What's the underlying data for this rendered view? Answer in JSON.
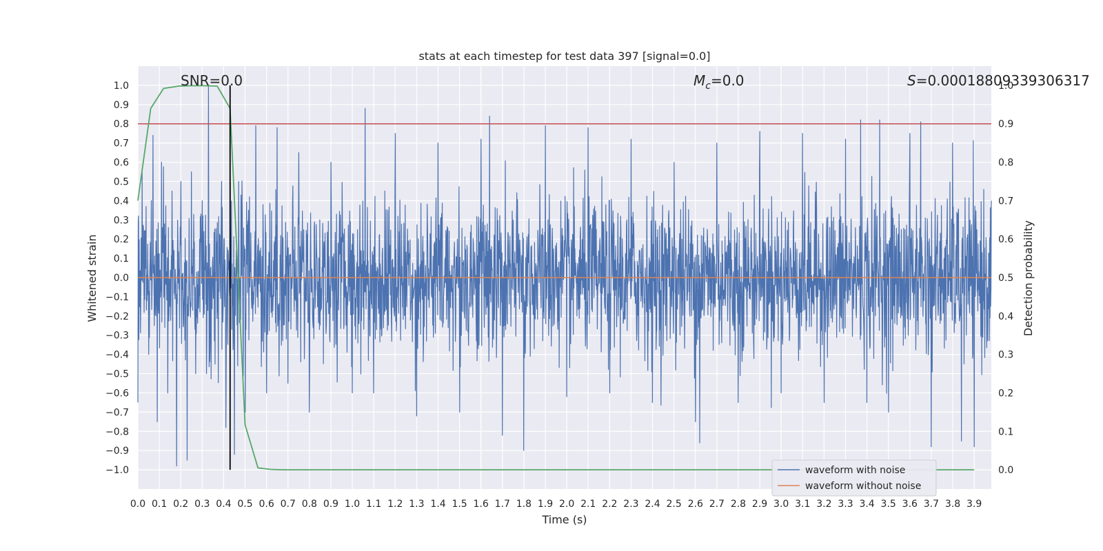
{
  "chart_data": {
    "type": "line",
    "title": "stats at each timestep for test data 397 [signal=0.0]",
    "xlabel": "Time (s)",
    "ylabel": "Whitened strain",
    "ylabel_right": "Detection probability",
    "xlim": [
      0.0,
      3.98
    ],
    "ylim": [
      -1.1,
      1.1
    ],
    "ylim_right": [
      -0.05,
      1.05
    ],
    "x_ticks": [
      "0.0",
      "0.1",
      "0.2",
      "0.3",
      "0.4",
      "0.5",
      "0.6",
      "0.7",
      "0.8",
      "0.9",
      "1.0",
      "1.1",
      "1.2",
      "1.3",
      "1.4",
      "1.5",
      "1.6",
      "1.7",
      "1.8",
      "1.9",
      "2.0",
      "2.1",
      "2.2",
      "2.3",
      "2.4",
      "2.5",
      "2.6",
      "2.7",
      "2.8",
      "2.9",
      "3.0",
      "3.1",
      "3.2",
      "3.3",
      "3.4",
      "3.5",
      "3.6",
      "3.7",
      "3.8",
      "3.9"
    ],
    "y_ticks": [
      "1.0",
      "0.9",
      "0.8",
      "0.7",
      "0.6",
      "0.5",
      "0.4",
      "0.3",
      "0.2",
      "0.1",
      "0.0",
      "-0.1",
      "-0.2",
      "-0.3",
      "-0.4",
      "-0.5",
      "-0.6",
      "-0.7",
      "-0.8",
      "-0.9",
      "-1.0"
    ],
    "y_right_ticks": [
      "1.0",
      "0.9",
      "0.8",
      "0.7",
      "0.6",
      "0.5",
      "0.4",
      "0.3",
      "0.2",
      "0.1",
      "0.0"
    ],
    "grid": true,
    "legend_position": "lower-right",
    "series": [
      {
        "name": "waveform with noise",
        "color": "#4c72b0",
        "description": "dense noise trace",
        "x_range": [
          0.0,
          3.98
        ],
        "y_range": [
          -0.98,
          1.0
        ],
        "x": [
          0.0,
          0.02,
          0.05,
          0.07,
          0.09,
          0.11,
          0.14,
          0.16,
          0.18,
          0.2,
          0.23,
          0.25,
          0.27,
          0.3,
          0.32,
          0.33,
          0.36,
          0.39,
          0.41,
          0.43,
          0.45,
          0.47,
          0.5,
          0.55,
          0.6,
          0.65,
          0.7,
          0.75,
          0.8,
          0.9,
          1.0,
          1.06,
          1.1,
          1.2,
          1.3,
          1.4,
          1.5,
          1.6,
          1.64,
          1.7,
          1.8,
          1.9,
          2.0,
          2.1,
          2.2,
          2.3,
          2.4,
          2.5,
          2.6,
          2.62,
          2.7,
          2.8,
          2.9,
          3.0,
          3.1,
          3.2,
          3.3,
          3.37,
          3.4,
          3.46,
          3.5,
          3.6,
          3.65,
          3.7,
          3.8,
          3.84,
          3.9,
          3.98
        ],
        "y": [
          -0.65,
          0.55,
          -0.4,
          0.74,
          -0.75,
          0.6,
          -0.6,
          0.45,
          -0.98,
          0.5,
          -0.95,
          0.55,
          -0.5,
          0.4,
          -0.5,
          1.0,
          -0.45,
          0.5,
          -0.78,
          0.62,
          -0.92,
          0.5,
          -0.7,
          0.79,
          -0.6,
          0.78,
          -0.55,
          0.65,
          -0.7,
          0.6,
          -0.6,
          0.88,
          -0.6,
          0.75,
          -0.72,
          0.7,
          -0.7,
          0.72,
          0.84,
          -0.82,
          -0.9,
          0.79,
          -0.62,
          0.78,
          -0.6,
          0.72,
          -0.65,
          0.6,
          -0.75,
          -0.86,
          0.7,
          -0.65,
          0.76,
          -0.6,
          0.75,
          -0.65,
          0.72,
          0.82,
          -0.65,
          0.82,
          -0.7,
          0.75,
          0.81,
          -0.88,
          0.7,
          -0.85,
          -0.88,
          0.4
        ]
      },
      {
        "name": "waveform without noise",
        "color": "#dd8452",
        "x": [
          0.0,
          3.98
        ],
        "y": [
          0.0,
          0.0
        ]
      },
      {
        "name": "",
        "color": "#55a868",
        "axis": "right",
        "x": [
          0.0,
          0.03,
          0.06,
          0.12,
          0.19,
          0.25,
          0.31,
          0.37,
          0.43,
          0.5,
          0.56,
          0.62,
          0.68,
          1.0,
          2.0,
          3.0,
          3.9
        ],
        "y": [
          0.7,
          0.82,
          0.94,
          0.992,
          0.998,
          0.999,
          0.999,
          0.998,
          0.94,
          0.117,
          0.005,
          0.001,
          0.0,
          0.0,
          0.0,
          0.0,
          0.0
        ]
      }
    ],
    "threshold_line": {
      "y_right": 0.9,
      "color": "#c44e52"
    },
    "event_marker": {
      "x": 0.43,
      "y_range": [
        -1.0,
        1.0
      ],
      "color": "#000000"
    },
    "annotations": {
      "snr": "SNR=0.0",
      "mc_symbol": "M",
      "mc_subscript": "c",
      "mc_value": "=0.0",
      "s_symbol": "S",
      "s_value": "=0.00018809339306317"
    }
  }
}
